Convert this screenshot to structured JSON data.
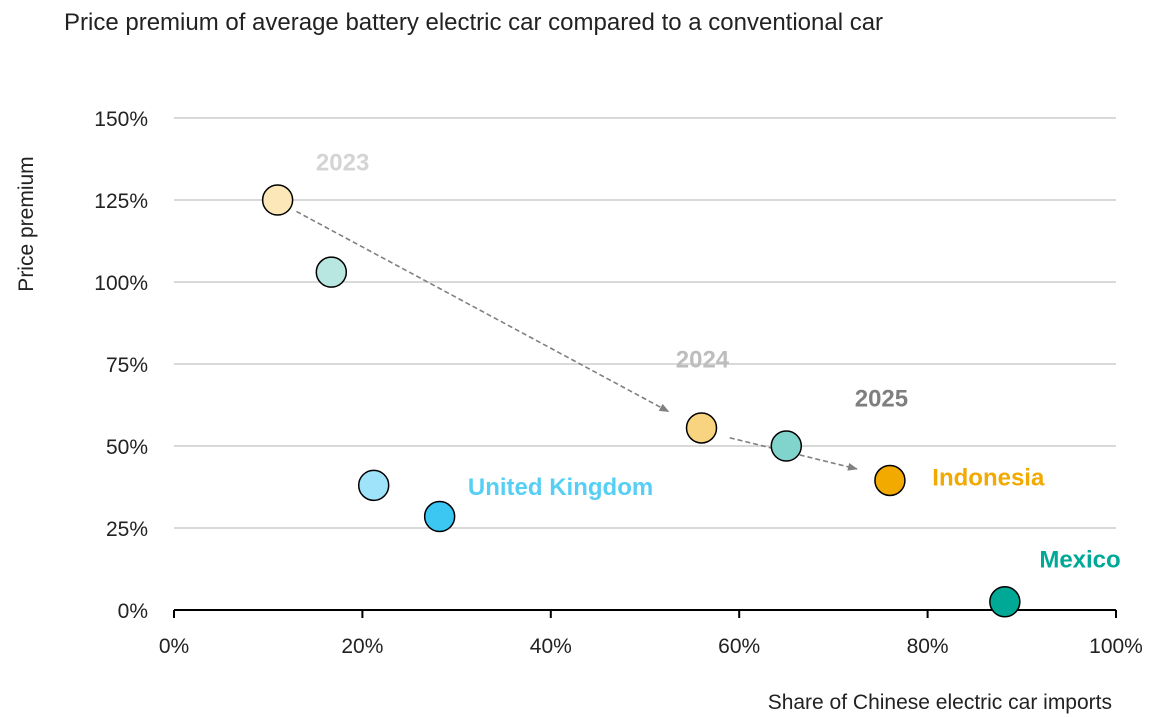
{
  "chart_data": {
    "type": "scatter",
    "title": "Price premium of average battery electric car compared to a conventional car",
    "xlabel": "Share of Chinese electric car imports",
    "ylabel": "Price premium",
    "xlim": [
      0,
      100
    ],
    "ylim": [
      0,
      150
    ],
    "x_ticks": [
      "0%",
      "20%",
      "40%",
      "60%",
      "80%",
      "100%"
    ],
    "y_ticks": [
      "0%",
      "25%",
      "50%",
      "75%",
      "100%",
      "125%",
      "150%"
    ],
    "grid": "horizontal",
    "legend": "none",
    "series": [
      {
        "name": "Indonesia",
        "color": "#F2A900",
        "points": [
          {
            "year": "2023",
            "x": 11,
            "y": 125
          },
          {
            "year": "2024",
            "x": 56,
            "y": 55.5
          },
          {
            "year": "2025",
            "x": 76,
            "y": 39.5
          }
        ]
      },
      {
        "name": "Mexico",
        "color": "#00A896",
        "points": [
          {
            "year": "2023",
            "x": 16.7,
            "y": 103
          },
          {
            "year": "2024",
            "x": 65,
            "y": 50
          },
          {
            "year": "2025",
            "x": 88.2,
            "y": 2.5
          }
        ]
      },
      {
        "name": "United Kingdom",
        "color": "#3CC6F2",
        "points": [
          {
            "year": "2024",
            "x": 21.2,
            "y": 38
          },
          {
            "year": "2025",
            "x": 28.2,
            "y": 28.5
          }
        ]
      }
    ],
    "year_labels": [
      {
        "text": "2023",
        "x": 17.9,
        "y": 134,
        "color": "#d4d4d4"
      },
      {
        "text": "2024",
        "x": 56.1,
        "y": 74,
        "color": "#bdbdbd"
      },
      {
        "text": "2025",
        "x": 75.1,
        "y": 62,
        "color": "#7f7f7f"
      }
    ],
    "arrows": [
      {
        "from": [
          13,
          121.5
        ],
        "to": [
          52.5,
          60.5
        ]
      },
      {
        "from": [
          59,
          52.5
        ],
        "to": [
          72.5,
          43
        ]
      }
    ],
    "series_labels": [
      {
        "text": "United Kingdom",
        "x": 31.2,
        "y": 35,
        "color": "#57CFF5",
        "anchor": "start"
      },
      {
        "text": "Indonesia",
        "x": 80.5,
        "y": 38,
        "color": "#F2A900",
        "anchor": "start"
      },
      {
        "text": "Mexico",
        "x": 100.5,
        "y": 13,
        "color": "#00A896",
        "anchor": "end"
      }
    ]
  }
}
